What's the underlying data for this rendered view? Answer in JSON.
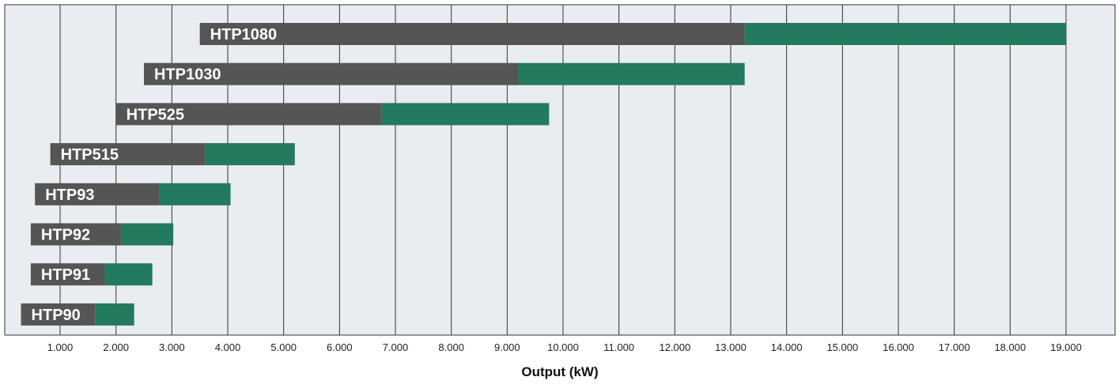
{
  "chart_data": {
    "type": "bar",
    "orientation": "horizontal",
    "stacked": true,
    "xlabel": "Output (kW)",
    "ylabel": "",
    "xlim": [
      0,
      20000
    ],
    "grid": true,
    "x_ticks": [
      1000,
      2000,
      3000,
      4000,
      5000,
      6000,
      7000,
      8000,
      9000,
      10000,
      11000,
      12000,
      13000,
      14000,
      15000,
      16000,
      17000,
      18000,
      19000
    ],
    "x_tick_labels": [
      "1.000",
      "2.000",
      "3.000",
      "4.000",
      "5.000",
      "6.000",
      "7.000",
      "8.000",
      "9.000",
      "10.000",
      "11.000",
      "12.000",
      "13.000",
      "14.000",
      "15.000",
      "16.000",
      "17.000",
      "18.000",
      "19.000"
    ],
    "categories": [
      "HTP1080",
      "HTP1030",
      "HTP525",
      "HTP515",
      "HTP93",
      "HTP92",
      "HTP91",
      "HTP90"
    ],
    "ranges": [
      {
        "name": "HTP1080",
        "start": 3500,
        "mid": 13250,
        "end": 19000
      },
      {
        "name": "HTP1030",
        "start": 2500,
        "mid": 9200,
        "end": 13250
      },
      {
        "name": "HTP525",
        "start": 2000,
        "mid": 6750,
        "end": 9750
      },
      {
        "name": "HTP515",
        "start": 825,
        "mid": 3600,
        "end": 5200
      },
      {
        "name": "HTP93",
        "start": 550,
        "mid": 2775,
        "end": 4050
      },
      {
        "name": "HTP92",
        "start": 475,
        "mid": 2100,
        "end": 3025
      },
      {
        "name": "HTP91",
        "start": 475,
        "mid": 1800,
        "end": 2650
      },
      {
        "name": "HTP90",
        "start": 300,
        "mid": 1625,
        "end": 2325
      }
    ],
    "colors": {
      "primary": "#555555",
      "secondary": "#237a5e",
      "plot_bg": "#e9ecf0",
      "grid": "#333333"
    }
  }
}
